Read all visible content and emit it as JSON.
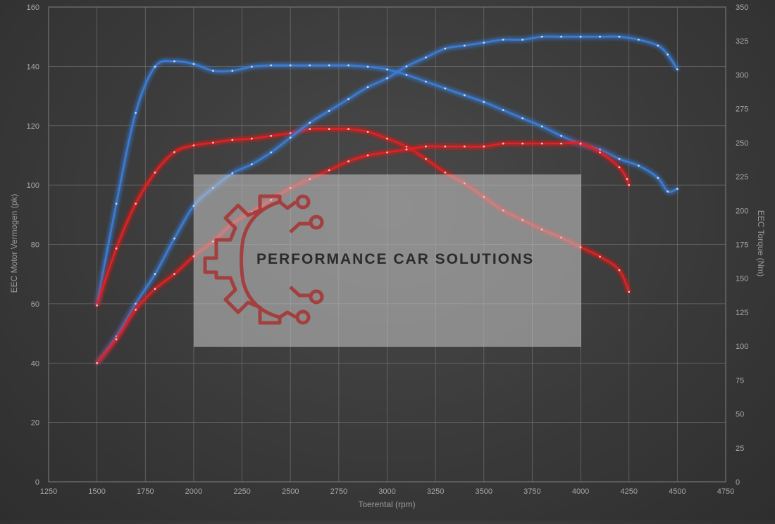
{
  "chart_data": {
    "type": "line",
    "xlabel": "Toerental (rpm)",
    "ylabel": "EEC Motor Vermogen (pk)",
    "y2label": "EEC Torque (Nm)",
    "xlim": [
      1250,
      4750
    ],
    "ylim": [
      0,
      160
    ],
    "y2lim": [
      0,
      350
    ],
    "x_ticks": [
      "1250",
      "1500",
      "1750",
      "2000",
      "2250",
      "2500",
      "2750",
      "3000",
      "3250",
      "3500",
      "3750",
      "4000",
      "4250",
      "4500",
      "4750"
    ],
    "y_ticks": [
      "0",
      "20",
      "40",
      "60",
      "80",
      "100",
      "120",
      "140",
      "160"
    ],
    "y2_ticks": [
      "0",
      "25",
      "50",
      "75",
      "100",
      "125",
      "150",
      "175",
      "200",
      "225",
      "250",
      "275",
      "300",
      "325",
      "350"
    ],
    "grid": true,
    "series": [
      {
        "color": "#3a7bd5",
        "axis": "right",
        "x": [
          1500,
          1600,
          1700,
          1800,
          1900,
          2000,
          2100,
          2200,
          2300,
          2400,
          2500,
          2600,
          2700,
          2800,
          2900,
          3000,
          3100,
          3200,
          3300,
          3400,
          3500,
          3600,
          3700,
          3800,
          3900,
          4000,
          4100,
          4200,
          4300,
          4400,
          4450,
          4500
        ],
        "y": [
          131,
          205,
          272,
          306,
          310,
          308,
          303,
          303,
          306,
          307,
          307,
          307,
          307,
          307,
          306,
          304,
          300,
          295,
          290,
          285,
          280,
          274,
          268,
          262,
          255,
          249,
          245,
          238,
          233,
          224,
          214,
          216
        ]
      },
      {
        "color": "#e02020",
        "axis": "right",
        "x": [
          1500,
          1600,
          1700,
          1800,
          1900,
          2000,
          2100,
          2200,
          2300,
          2400,
          2500,
          2600,
          2700,
          2800,
          2900,
          3000,
          3100,
          3200,
          3300,
          3400,
          3500,
          3600,
          3700,
          3800,
          3900,
          4000,
          4100,
          4200,
          4250
        ],
        "y": [
          130,
          172,
          205,
          228,
          243,
          248,
          250,
          252,
          253,
          255,
          257,
          260,
          260,
          260,
          258,
          253,
          247,
          238,
          228,
          220,
          210,
          200,
          193,
          186,
          180,
          173,
          166,
          156,
          140
        ]
      },
      {
        "color": "#3a7bd5",
        "axis": "left",
        "x": [
          1500,
          1600,
          1700,
          1800,
          1900,
          2000,
          2100,
          2200,
          2300,
          2400,
          2500,
          2600,
          2700,
          2800,
          2900,
          3000,
          3100,
          3200,
          3300,
          3400,
          3500,
          3600,
          3700,
          3800,
          3900,
          4000,
          4100,
          4200,
          4300,
          4400,
          4450,
          4500
        ],
        "y": [
          40,
          49,
          60,
          70,
          82,
          93,
          99,
          104,
          107,
          111,
          116,
          121,
          125,
          129,
          133,
          136,
          140,
          143,
          146,
          147,
          148,
          149,
          149,
          150,
          150,
          150,
          150,
          150,
          149,
          147,
          144,
          139
        ]
      },
      {
        "color": "#e02020",
        "axis": "left",
        "x": [
          1500,
          1600,
          1700,
          1800,
          1900,
          2000,
          2100,
          2200,
          2300,
          2400,
          2500,
          2600,
          2700,
          2800,
          2900,
          3000,
          3100,
          3200,
          3300,
          3400,
          3500,
          3600,
          3700,
          3800,
          3900,
          4000,
          4100,
          4200,
          4240,
          4250
        ],
        "y": [
          40,
          48,
          58,
          65,
          70,
          76,
          81,
          87,
          91,
          95,
          99,
          102,
          105,
          108,
          110,
          111,
          112,
          113,
          113,
          113,
          113,
          114,
          114,
          114,
          114,
          114,
          111,
          106,
          102,
          100
        ]
      }
    ]
  },
  "watermark": {
    "text": "PERFORMANCE CAR SOLUTIONS",
    "logo_color": "#a83232"
  }
}
